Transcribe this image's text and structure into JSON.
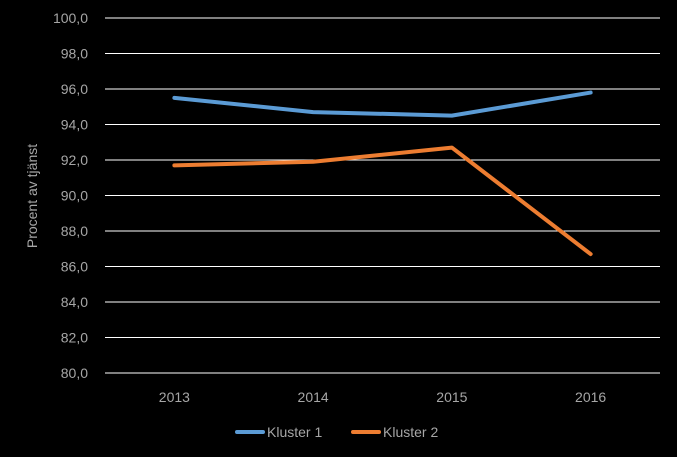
{
  "chart_data": {
    "type": "line",
    "categories": [
      "2013",
      "2014",
      "2015",
      "2016"
    ],
    "series": [
      {
        "name": "Kluster 1",
        "color": "#5b9bd5",
        "values": [
          95.5,
          94.7,
          94.5,
          95.8
        ]
      },
      {
        "name": "Kluster 2",
        "color": "#ed7d31",
        "values": [
          91.7,
          91.9,
          92.7,
          86.7
        ]
      }
    ],
    "ylabel": "Procent av tjänst",
    "ylim": [
      80,
      100
    ],
    "yticks": [
      "80,0",
      "82,0",
      "84,0",
      "86,0",
      "88,0",
      "90,0",
      "92,0",
      "94,0",
      "96,0",
      "98,0",
      "100,0"
    ],
    "grid": true,
    "legend_position": "bottom"
  }
}
